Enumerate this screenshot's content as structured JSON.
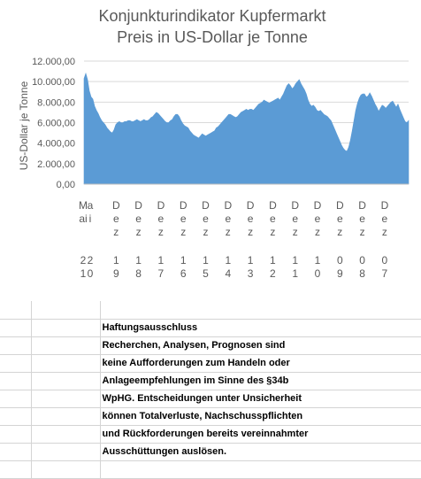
{
  "chart_data": {
    "type": "area",
    "title": "Konjunkturindikator Kupfermarkt",
    "subtitle": "Preis in US-Dollar je Tonne",
    "ylabel": "US-Dollar je Tonne",
    "ylim": [
      0,
      12000
    ],
    "yticks": [
      "0,00",
      "2.000,00",
      "4.000,00",
      "6.000,00",
      "8.000,00",
      "10.000,00",
      "12.000,00"
    ],
    "xtick_labels": [
      [
        "M",
        "ai",
        "",
        "2",
        "1"
      ],
      [
        "a",
        "i",
        "",
        "2",
        "0"
      ],
      [
        "D",
        "e",
        "z",
        "1",
        "9"
      ],
      [
        "D",
        "e",
        "z",
        "1",
        "8"
      ],
      [
        "D",
        "e",
        "z",
        "1",
        "7"
      ],
      [
        "D",
        "e",
        "z",
        "1",
        "6"
      ],
      [
        "D",
        "e",
        "z",
        "1",
        "5"
      ],
      [
        "D",
        "e",
        "z",
        "1",
        "4"
      ],
      [
        "D",
        "e",
        "z",
        "1",
        "3"
      ],
      [
        "D",
        "e",
        "z",
        "1",
        "2"
      ],
      [
        "D",
        "e",
        "z",
        "1",
        "1"
      ],
      [
        "D",
        "e",
        "z",
        "1",
        "0"
      ],
      [
        "D",
        "e",
        "z",
        "0",
        "9"
      ],
      [
        "D",
        "e",
        "z",
        "0",
        "8"
      ],
      [
        "D",
        "e",
        "z",
        "0",
        "7"
      ]
    ],
    "x_order": "newest-left",
    "grid": true,
    "color": "#5b9bd5",
    "values": [
      10300,
      10800,
      10200,
      9100,
      8500,
      8300,
      7600,
      7200,
      6900,
      6500,
      6200,
      6000,
      5800,
      5500,
      5300,
      5100,
      5000,
      5300,
      5800,
      6000,
      6100,
      6000,
      6000,
      6100,
      6100,
      6200,
      6200,
      6100,
      6100,
      6200,
      6300,
      6200,
      6100,
      6200,
      6300,
      6200,
      6200,
      6300,
      6500,
      6600,
      6800,
      7000,
      6900,
      6700,
      6500,
      6300,
      6100,
      6000,
      6000,
      6200,
      6300,
      6600,
      6800,
      6800,
      6600,
      6200,
      5900,
      5700,
      5600,
      5500,
      5200,
      5000,
      4800,
      4700,
      4600,
      4500,
      4700,
      4900,
      4800,
      4700,
      4800,
      4900,
      5000,
      5100,
      5200,
      5500,
      5600,
      5800,
      6000,
      6200,
      6400,
      6600,
      6800,
      6800,
      6700,
      6600,
      6500,
      6600,
      6800,
      7000,
      7100,
      7200,
      7300,
      7200,
      7300,
      7300,
      7200,
      7400,
      7600,
      7800,
      7900,
      8000,
      8200,
      8100,
      8000,
      7900,
      8000,
      8100,
      8200,
      8300,
      8400,
      8200,
      8500,
      8800,
      9200,
      9600,
      9800,
      9600,
      9300,
      9500,
      9800,
      10000,
      10200,
      9800,
      9500,
      9200,
      8800,
      8200,
      7800,
      7600,
      7700,
      7500,
      7200,
      7100,
      7200,
      7000,
      6800,
      6700,
      6600,
      6400,
      6200,
      5800,
      5400,
      5000,
      4600,
      4200,
      3800,
      3500,
      3300,
      3200,
      3600,
      4300,
      5200,
      6200,
      7200,
      7900,
      8400,
      8700,
      8800,
      8800,
      8500,
      8600,
      8900,
      8600,
      8200,
      7800,
      7500,
      7100,
      7400,
      7700,
      7600,
      7400,
      7600,
      7800,
      8000,
      8100,
      7800,
      7500,
      7800,
      7300,
      6900,
      6500,
      6100,
      6000,
      6200
    ]
  },
  "spreadsheet": {
    "lines": [
      "",
      "Haftungsausschluss",
      "Recherchen, Analysen, Prognosen sind",
      "keine Aufforderungen zum Handeln oder",
      "Anlageempfehlungen im Sinne des §34b",
      "WpHG. Entscheidungen unter Unsicherheit",
      "können Totalverluste, Nachschusspflichten",
      "und Rückforderungen bereits vereinnahmter",
      "Ausschüttungen auslösen.",
      ""
    ]
  }
}
